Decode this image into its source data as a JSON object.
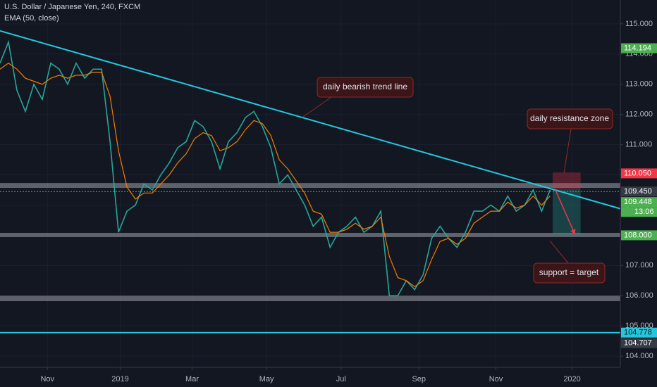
{
  "chart_data": {
    "type": "line",
    "title": "U.S. Dollar / Japanese Yen, 240, FXCM",
    "x": [
      0,
      1,
      2,
      3,
      4,
      5,
      6,
      7,
      8,
      9,
      10,
      11,
      12,
      13,
      14,
      15,
      16,
      17,
      18,
      19,
      20,
      21,
      22,
      23,
      24,
      25,
      26,
      27,
      28,
      29,
      30,
      31,
      32,
      33,
      34,
      35,
      36,
      37,
      38,
      39,
      40,
      41,
      42,
      43,
      44,
      45,
      46,
      47,
      48,
      49,
      50,
      51,
      52,
      53,
      54,
      55,
      56,
      57,
      58,
      59,
      60,
      61,
      62,
      63,
      64,
      65
    ],
    "series": [
      {
        "color": "#26a69a",
        "values": [
          113.7,
          114.4,
          112.8,
          112.1,
          113.0,
          112.5,
          113.7,
          113.5,
          113.0,
          113.7,
          113.2,
          113.5,
          113.5,
          111.1,
          108.1,
          108.8,
          109.0,
          109.7,
          109.5,
          110.0,
          110.4,
          110.9,
          111.1,
          111.8,
          111.6,
          111.1,
          110.2,
          111.1,
          111.4,
          111.9,
          112.1,
          111.6,
          110.9,
          109.7,
          110.0,
          109.5,
          109.0,
          108.3,
          108.6,
          107.6,
          108.1,
          108.3,
          108.6,
          108.1,
          108.3,
          108.8,
          106.0,
          106.0,
          106.5,
          106.2,
          106.7,
          107.9,
          108.3,
          107.9,
          107.6,
          108.1,
          108.8,
          108.8,
          109.0,
          108.8,
          109.3,
          108.8,
          109.0,
          109.5,
          108.8,
          109.5
        ]
      },
      {
        "name": "EMA (50, close)",
        "color": "#f57c00",
        "values": [
          113.5,
          113.7,
          113.5,
          113.2,
          113.1,
          113.0,
          113.2,
          113.3,
          113.2,
          113.3,
          113.3,
          113.4,
          113.4,
          112.6,
          110.8,
          109.6,
          109.2,
          109.4,
          109.4,
          109.7,
          110.0,
          110.4,
          110.7,
          111.2,
          111.4,
          111.3,
          110.8,
          110.9,
          111.1,
          111.5,
          111.8,
          111.7,
          111.3,
          110.5,
          110.2,
          109.8,
          109.4,
          108.8,
          108.7,
          108.1,
          108.1,
          108.2,
          108.4,
          108.2,
          108.3,
          108.6,
          107.3,
          106.6,
          106.5,
          106.3,
          106.5,
          107.2,
          107.8,
          107.9,
          107.7,
          107.9,
          108.4,
          108.6,
          108.8,
          108.8,
          109.1,
          108.9,
          109.0,
          109.3,
          109.0,
          109.3
        ]
      }
    ],
    "xlim": [
      0,
      73.3
    ],
    "xticks": [
      {
        "value": 5.6,
        "label": "Nov"
      },
      {
        "value": 14.2,
        "label": "2019"
      },
      {
        "value": 22.7,
        "label": "Mar"
      },
      {
        "value": 31.5,
        "label": "May"
      },
      {
        "value": 40.3,
        "label": "Jul"
      },
      {
        "value": 49.5,
        "label": "Sep"
      },
      {
        "value": 58.6,
        "label": "Nov"
      },
      {
        "value": 67.6,
        "label": "2020"
      }
    ],
    "ylim": [
      103.63,
      115.79
    ],
    "yticks": [
      {
        "value": 104,
        "label": "104.000"
      },
      {
        "value": 105,
        "label": "105.000"
      },
      {
        "value": 106,
        "label": "106.000"
      },
      {
        "value": 107,
        "label": "107.000"
      },
      {
        "value": 108,
        "label": "108.000"
      },
      {
        "value": 109,
        "label": "109.000"
      },
      {
        "value": 110,
        "label": "110.000"
      },
      {
        "value": 111,
        "label": "111.000"
      },
      {
        "value": 112,
        "label": "112.000"
      },
      {
        "value": 113,
        "label": "113.000"
      },
      {
        "value": 114,
        "label": "114.000"
      },
      {
        "value": 115,
        "label": "115.000"
      }
    ],
    "grid": true,
    "trend_line": {
      "color": "#26c6da",
      "x": [
        0,
        73.3
      ],
      "y": [
        114.77,
        108.88
      ]
    },
    "zones": [
      {
        "y": [
          109.57,
          109.73
        ]
      },
      {
        "y": [
          107.94,
          108.08
        ]
      },
      {
        "y": [
          105.82,
          106.0
        ]
      }
    ],
    "support_line": {
      "value": 104.778,
      "color": "#26c6da"
    },
    "current_line": {
      "value": 109.448,
      "color": "#4caf50"
    },
    "trade": {
      "x": [
        65.3,
        68.6
      ],
      "stop": 110.08,
      "entry": 109.5,
      "target": 108.03
    },
    "price_labels": [
      {
        "value": 114.194,
        "color": "#4caf50"
      },
      {
        "value": 110.05,
        "label": "110.050",
        "color": "#f23645"
      },
      {
        "value": 109.45,
        "label": "109.450",
        "color": "#363a45"
      },
      {
        "value": 109.448,
        "color": "#4caf50"
      },
      {
        "value": 108,
        "label": "108.000",
        "color": "#4caf50"
      },
      {
        "value": 104.778,
        "color": "#26c6da"
      },
      {
        "value": 104.707,
        "color": "#363a45"
      }
    ],
    "countdown": "13:06",
    "annotations": [
      "daily bearish trend line",
      "daily resistance zone",
      "support = target"
    ]
  }
}
